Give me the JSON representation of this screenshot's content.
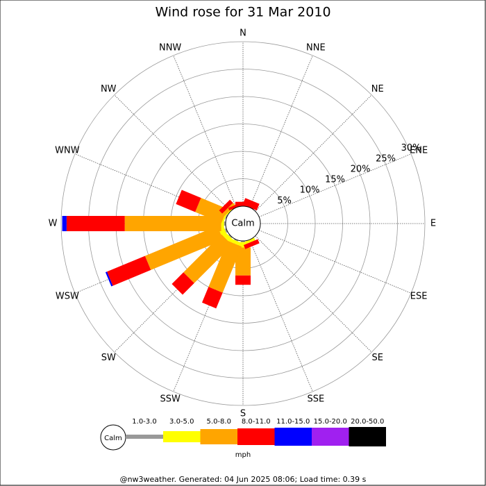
{
  "chart_data": {
    "type": "windrose",
    "title": "Wind rose for 31 Mar 2010",
    "directions": [
      "N",
      "NNE",
      "NE",
      "ENE",
      "E",
      "ESE",
      "SE",
      "SSE",
      "S",
      "SSW",
      "SW",
      "WSW",
      "W",
      "WNW",
      "NW",
      "NNW"
    ],
    "series": [
      {
        "name": "1.0-3.0",
        "color": "#999999",
        "values": [
          0,
          0,
          0,
          0,
          0,
          0,
          0,
          0,
          0.2,
          0.2,
          0.2,
          0.3,
          0.3,
          0.2,
          0,
          0
        ]
      },
      {
        "name": "3.0-5.0",
        "color": "#ffff00",
        "values": [
          0,
          0,
          0,
          0,
          0,
          0,
          0,
          0.5,
          1.0,
          0.6,
          0.8,
          1.0,
          0.5,
          0.3,
          0.2,
          0
        ]
      },
      {
        "name": "5.0-8.0",
        "color": "#ffa500",
        "values": [
          0,
          0,
          0,
          0,
          0,
          0,
          0,
          0,
          5.1,
          9.1,
          9.8,
          14.3,
          17.6,
          5.2,
          0.6,
          0
        ]
      },
      {
        "name": "8.0-11.0",
        "color": "#ff0000",
        "values": [
          0.8,
          1.3,
          0,
          0,
          0,
          0,
          0,
          0.8,
          1.7,
          3.1,
          3.0,
          7.5,
          10.6,
          3.8,
          0.8,
          0.5
        ]
      },
      {
        "name": "11.0-15.0",
        "color": "#0000ff",
        "values": [
          0,
          0,
          0,
          0,
          0,
          0,
          0,
          0,
          0,
          0,
          0,
          0.3,
          0.8,
          0,
          0,
          0
        ]
      },
      {
        "name": "15.0-20.0",
        "color": "#a020f0",
        "values": [
          0,
          0,
          0,
          0,
          0,
          0,
          0,
          0,
          0,
          0,
          0,
          0,
          0,
          0,
          0,
          0
        ]
      },
      {
        "name": "20.0-50.0",
        "color": "#000000",
        "values": [
          0,
          0,
          0,
          0,
          0,
          0,
          0,
          0,
          0,
          0,
          0,
          0,
          0,
          0,
          0,
          0
        ]
      }
    ],
    "rlim": [
      0,
      30
    ],
    "rticks": [
      {
        "value": 5,
        "label": "5%"
      },
      {
        "value": 10,
        "label": "10%"
      },
      {
        "value": 15,
        "label": "15%"
      },
      {
        "value": 20,
        "label": "20%"
      },
      {
        "value": 25,
        "label": "25%"
      },
      {
        "value": 30,
        "label": "30%"
      }
    ],
    "calm_label": "Calm",
    "unit": "mph",
    "footer": "@nw3weather. Generated: 04 Jun 2025 08:06; Load time: 0.39 s"
  }
}
